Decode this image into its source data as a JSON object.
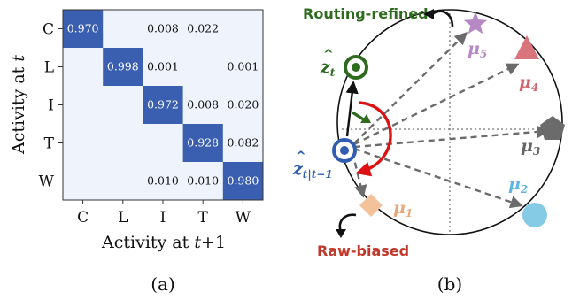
{
  "panel_a": {
    "caption": "(a)",
    "y_label_prefix": "Activity at ",
    "y_label_var": "t",
    "x_label_prefix": "Activity at ",
    "x_label_var": "t",
    "x_label_suffix": "+1",
    "chart_data": {
      "type": "heatmap",
      "rows": [
        "C",
        "L",
        "I",
        "T",
        "W"
      ],
      "cols": [
        "C",
        "L",
        "I",
        "T",
        "W"
      ],
      "cells": [
        [
          "0.970",
          "",
          "0.008",
          "0.022",
          ""
        ],
        [
          "",
          "0.998",
          "0.001",
          "",
          "0.001"
        ],
        [
          "",
          "",
          "0.972",
          "0.008",
          "0.020"
        ],
        [
          "",
          "",
          "",
          "0.928",
          "0.082"
        ],
        [
          "",
          "",
          "0.010",
          "0.010",
          "0.980"
        ]
      ],
      "colors": {
        "high": "#3b5fb0",
        "low": "#eef3fc",
        "diag_text": "#ffffff",
        "text": "#111111"
      }
    }
  },
  "panel_b": {
    "caption": "(b)",
    "routing_label": "Routing-refined",
    "raw_label": "Raw-biased",
    "z_t": "z",
    "z_t_sub": "t",
    "z_prior": "z",
    "z_prior_sub": "t|t−1",
    "mu_symbol": "μ",
    "mu_subs": [
      "5",
      "4",
      "3",
      "2",
      "1"
    ],
    "colors": {
      "routing": "#2e6b1f",
      "raw": "#c0392b",
      "z_prior": "#2f5db0",
      "mu5": "#b789c4",
      "mu4": "#d9747c",
      "mu3": "#6b6b6b",
      "mu2": "#86cbe6",
      "mu1": "#f4c29a",
      "mu1_text": "#e8a97a",
      "mu2_text": "#5fb7df",
      "mu3_text": "#666666",
      "mu4_text": "#d4656e",
      "mu5_text": "#b789c4"
    }
  }
}
